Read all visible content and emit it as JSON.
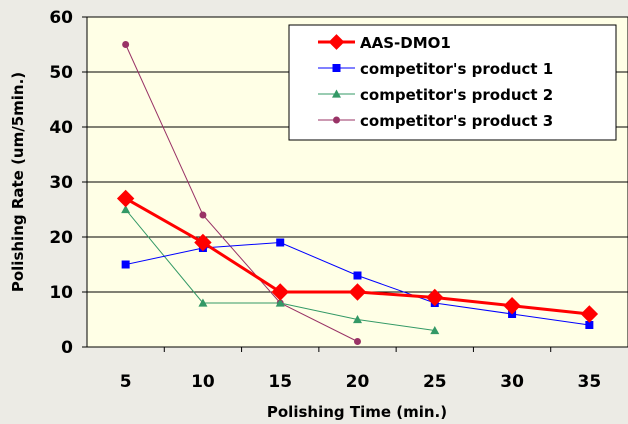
{
  "chart_data": {
    "type": "line",
    "x": [
      5,
      10,
      15,
      20,
      25,
      30,
      35
    ],
    "xlabel": "Polishing Time (min.)",
    "ylabel": "Polishing Rate (um/5min.)",
    "ylim": [
      0,
      60
    ],
    "yticks": [
      0,
      10,
      20,
      30,
      40,
      50,
      60
    ],
    "grid": "horizontal",
    "legend_position": "top-right",
    "colors": {
      "plot_background": "#ffffe6",
      "page_background": "#ecebe5",
      "series1": "#ff0000",
      "series2": "#0000ff",
      "series3": "#339966",
      "series4": "#993366"
    },
    "series": [
      {
        "name": "AAS-DMO1",
        "marker": "diamond",
        "color": "#ff0000",
        "values": [
          27,
          19,
          10,
          10,
          9,
          7.5,
          6
        ]
      },
      {
        "name": "competitor's product  1",
        "marker": "square",
        "color": "#0000ff",
        "values": [
          15,
          18,
          19,
          13,
          8,
          6,
          4
        ]
      },
      {
        "name": "competitor's product  2",
        "marker": "triangle",
        "color": "#339966",
        "values": [
          25,
          8,
          8,
          5,
          3,
          null,
          null
        ]
      },
      {
        "name": "competitor's product  3",
        "marker": "circle",
        "color": "#993366",
        "values": [
          55,
          24,
          8,
          1,
          null,
          null,
          null
        ]
      }
    ]
  }
}
